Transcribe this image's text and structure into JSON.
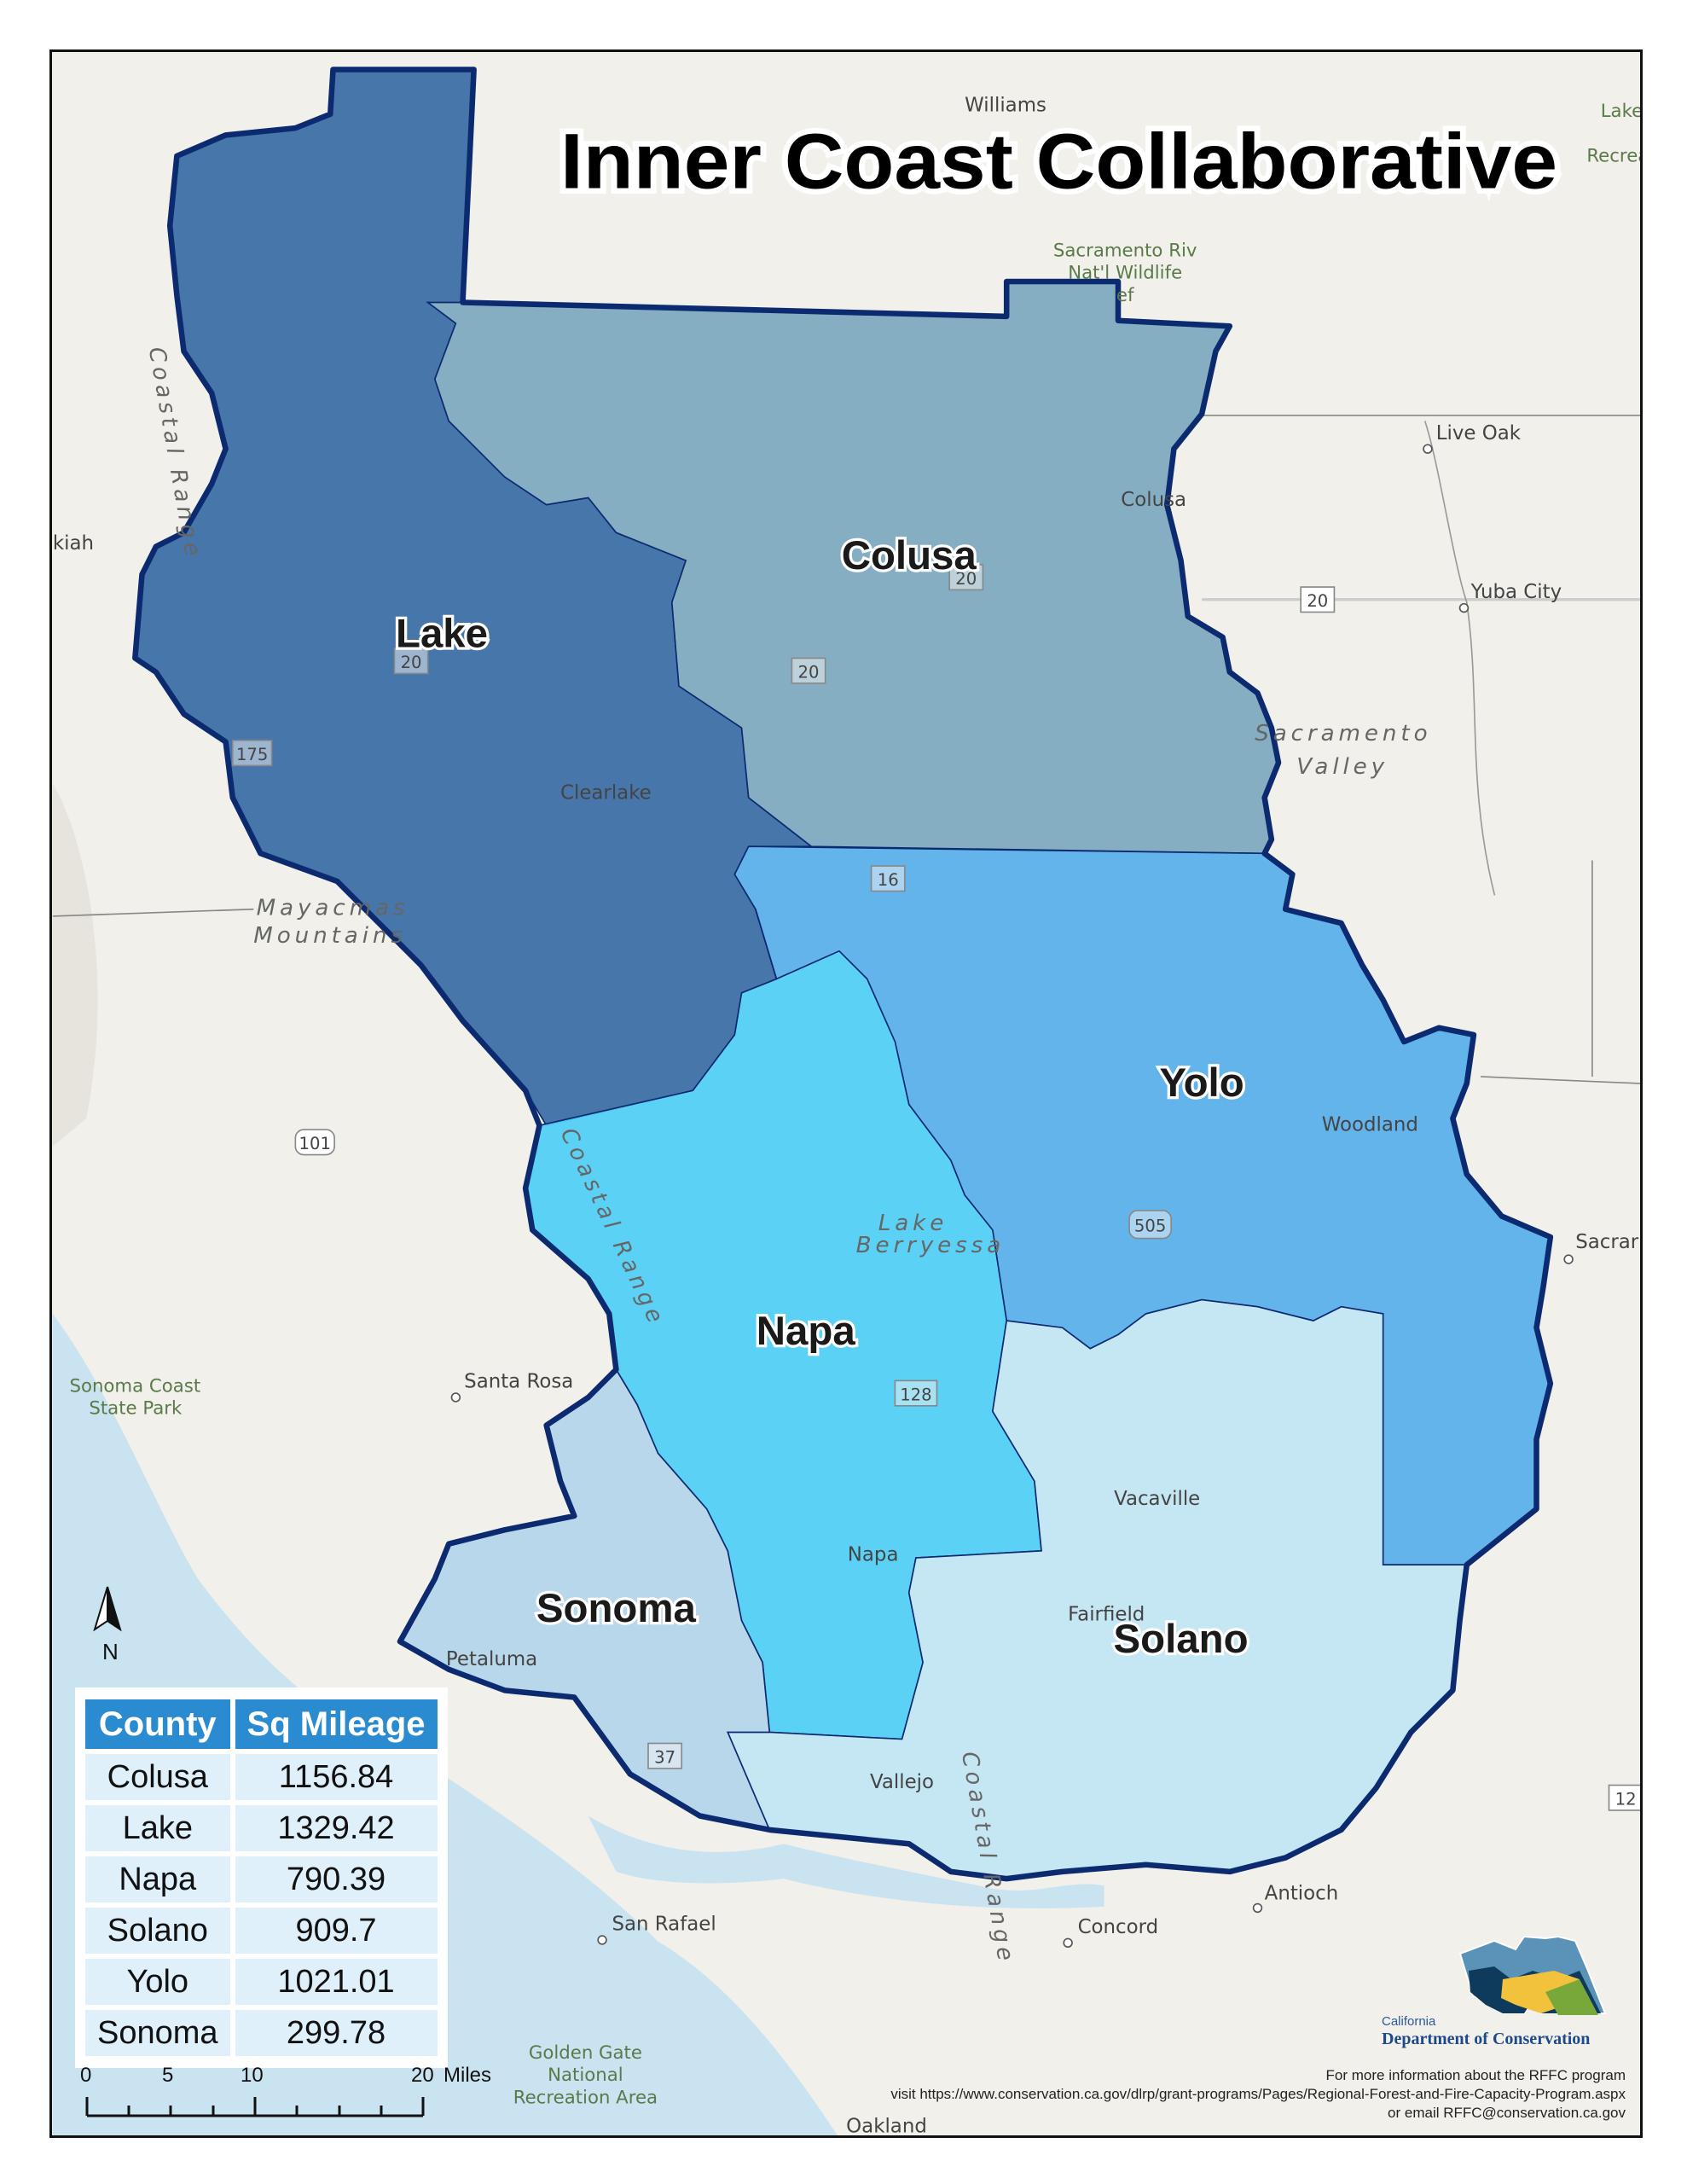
{
  "title": "Inner Coast Collaborative",
  "colors": {
    "outline": "#0b2a70",
    "lake": "#3c6fa6",
    "colusa": "#80aac1",
    "yolo": "#5cb0ec",
    "napa": "#52cff5",
    "solano": "#c2e5f3",
    "sonoma": "#b5d5eb",
    "table_header": "#2a8bd0",
    "table_cell": "#dff0fb"
  },
  "counties": {
    "lake": "Lake",
    "colusa": "Colusa",
    "yolo": "Yolo",
    "napa": "Napa",
    "solano": "Solano",
    "sonoma": "Sonoma"
  },
  "places": {
    "sacramento_nwr_1": "Sacramento Riv",
    "sacramento_nwr_2": "Nat'l Wildlife",
    "sacramento_nwr_3": "ef",
    "live_oak": "Live Oak",
    "yuba_city": "Yuba City",
    "colusa_town": "Colusa",
    "clearlake": "Clearlake",
    "ukiah": "kiah",
    "sacramento_valley_1": "Sacramento",
    "sacramento_valley_2": "Valley",
    "coastal_range_n": "Coastal Range",
    "coastal_range_mid": "Coastal Range",
    "coastal_range_s": "Coastal Range",
    "mayacmas_1": "Mayacmas",
    "mayacmas_2": "Mountains",
    "woodland": "Woodland",
    "sacramento": "Sacrar",
    "lake_berryessa_1": "Lake",
    "lake_berryessa_2": "Berryessa",
    "santa_rosa": "Santa Rosa",
    "sonoma_coast_1": "Sonoma Coast",
    "sonoma_coast_2": "State Park",
    "vacaville": "Vacaville",
    "napa_town": "Napa",
    "fairfield": "Fairfield",
    "petaluma": "Petaluma",
    "vallejo": "Vallejo",
    "antioch": "Antioch",
    "concord": "Concord",
    "san_rafael": "San Rafael",
    "golden_gate_1": "Golden Gate",
    "golden_gate_2": "National",
    "golden_gate_3": "Recreation Area",
    "oakland": "Oakland",
    "lake_rec_1": "Lake",
    "lake_rec_2": "Recrea",
    "williams": "Williams"
  },
  "highways": [
    "20",
    "20",
    "20",
    "20",
    "175",
    "16",
    "101",
    "505",
    "128",
    "37",
    "12"
  ],
  "table": {
    "headers": [
      "County",
      "Sq Mileage"
    ],
    "rows": [
      [
        "Colusa",
        "1156.84"
      ],
      [
        "Lake",
        "1329.42"
      ],
      [
        "Napa",
        "790.39"
      ],
      [
        "Solano",
        "909.7"
      ],
      [
        "Yolo",
        "1021.01"
      ],
      [
        "Sonoma",
        "299.78"
      ]
    ]
  },
  "scale_bar": {
    "ticks": [
      "0",
      "5",
      "10",
      "20"
    ],
    "unit": "Miles"
  },
  "north_arrow": {
    "label": "N",
    "icon": "north-arrow-icon"
  },
  "logo": {
    "line1": "California",
    "line2": "Department of Conservation"
  },
  "footer": {
    "line1": "For more information about the RFFC program",
    "line2": "visit https://www.conservation.ca.gov/dlrp/grant-programs/Pages/Regional-Forest-and-Fire-Capacity-Program.aspx",
    "line3": "or email RFFC@conservation.ca.gov"
  }
}
